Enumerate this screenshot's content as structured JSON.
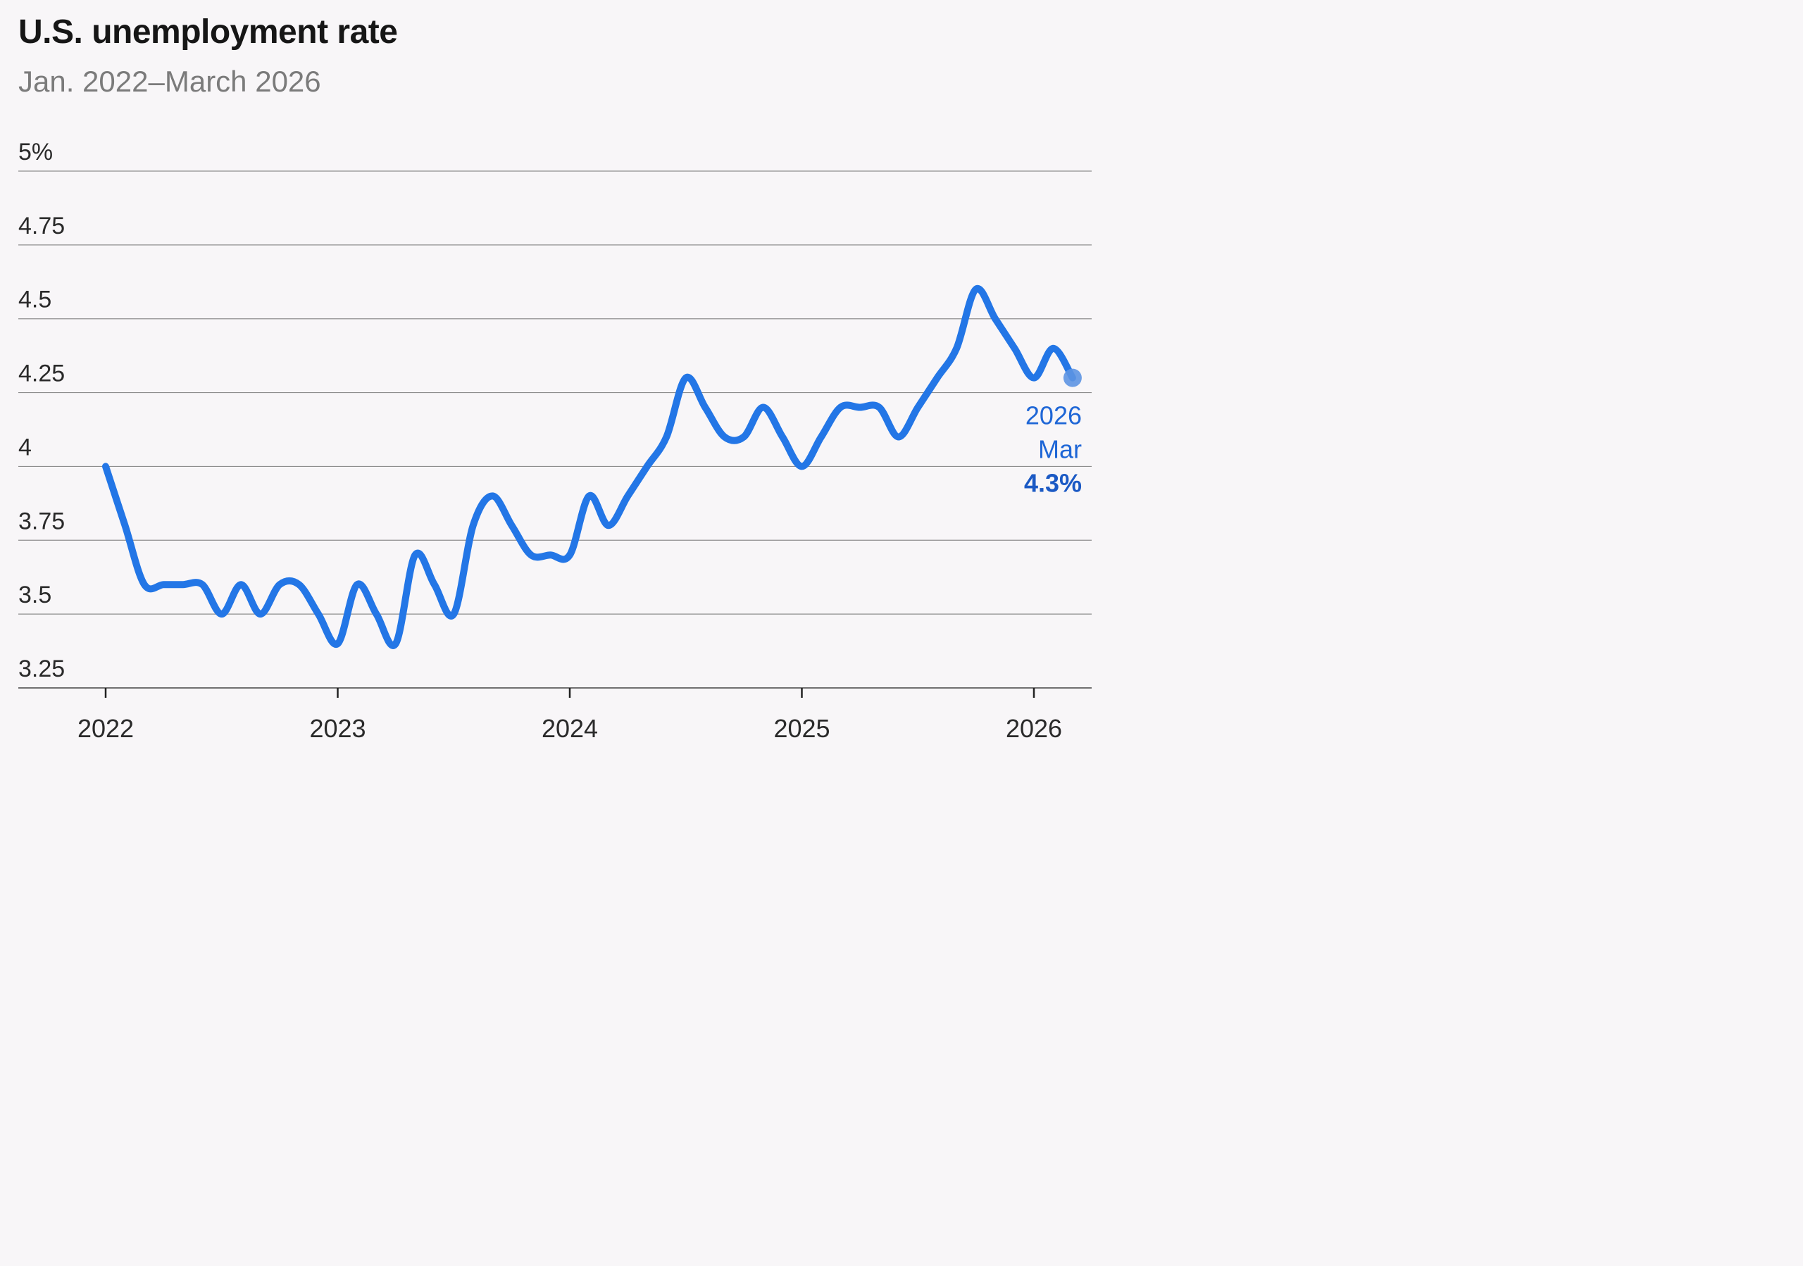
{
  "header": {
    "title": "U.S. unemployment rate",
    "subtitle": "Jan. 2022–March 2026"
  },
  "colors": {
    "series": "#2376e6",
    "annotation": "#1e66d6"
  },
  "chart_data": {
    "type": "line",
    "title": "U.S. unemployment rate",
    "subtitle": "Jan. 2022–March 2026",
    "xlabel": "",
    "ylabel": "",
    "ylim": [
      3.25,
      5
    ],
    "y_ticks": [
      5,
      4.75,
      4.5,
      4.25,
      4,
      3.75,
      3.5,
      3.25
    ],
    "y_tick_labels": [
      "5%",
      "4.75",
      "4.5",
      "4.25",
      "4",
      "3.75",
      "3.5",
      "3.25"
    ],
    "x_ticks": [
      "2022",
      "2023",
      "2024",
      "2025",
      "2026"
    ],
    "grid": true,
    "legend": "none",
    "series": [
      {
        "name": "Unemployment rate",
        "start": "2022-01",
        "values": [
          4.0,
          3.8,
          3.6,
          3.6,
          3.6,
          3.6,
          3.5,
          3.6,
          3.5,
          3.6,
          3.6,
          3.5,
          3.4,
          3.6,
          3.5,
          3.4,
          3.7,
          3.6,
          3.5,
          3.8,
          3.9,
          3.8,
          3.7,
          3.7,
          3.7,
          3.9,
          3.8,
          3.9,
          4.0,
          4.1,
          4.3,
          4.2,
          4.1,
          4.1,
          4.2,
          4.1,
          4.0,
          4.1,
          4.2,
          4.2,
          4.2,
          4.1,
          4.2,
          4.3,
          4.4,
          4.6,
          4.5,
          4.4,
          4.3,
          4.4,
          4.3
        ]
      }
    ],
    "annotation": {
      "year": "2026",
      "month": "Mar",
      "value_label": "4.3%"
    }
  }
}
